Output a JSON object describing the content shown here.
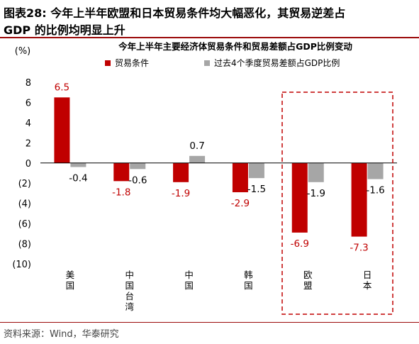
{
  "header": {
    "line1": "图表28:    今年上半年欧盟和日本贸易条件均大幅恶化，其贸易逆差占",
    "line2": "GDP 的比例均明显上升"
  },
  "footer": {
    "source": "资料来源：Wind，华泰研究"
  },
  "colors": {
    "primary_series": "#c00000",
    "secondary_series": "#a6a6a6",
    "highlight_box": "#c00000",
    "brand_rule": "#9b0a0a"
  },
  "chart_data": {
    "type": "bar",
    "title": "今年上半年主要经济体贸易条件和贸易差额占GDP比例变动",
    "ylabel": "(%)",
    "xlabel": "",
    "ylim": [
      -10,
      8
    ],
    "yticks": [
      8,
      6,
      4,
      2,
      0,
      -2,
      -4,
      -6,
      -8,
      -10
    ],
    "ytick_labels": [
      "8",
      "6",
      "4",
      "2",
      "0",
      "(2)",
      "(4)",
      "(6)",
      "(8)",
      "(10)"
    ],
    "categories": [
      "美国",
      "中国台湾",
      "中国",
      "韩国",
      "欧盟",
      "日本"
    ],
    "series": [
      {
        "name": "贸易条件",
        "values": [
          6.5,
          -1.8,
          -1.9,
          -2.9,
          -6.9,
          -7.3
        ],
        "labels": [
          "6.5",
          "-1.8",
          "-1.9",
          "-2.9",
          "-6.9",
          "-7.3"
        ]
      },
      {
        "name": "过去4个季度贸易差额占GDP比例",
        "values": [
          -0.4,
          -0.6,
          0.7,
          -1.5,
          -1.9,
          -1.6
        ],
        "labels": [
          "-0.4",
          "-0.6",
          "0.7",
          "-1.5",
          "-1.9",
          "-1.6"
        ]
      }
    ],
    "highlighted_categories": [
      "欧盟",
      "日本"
    ],
    "legend_position": "top",
    "grid": false
  }
}
